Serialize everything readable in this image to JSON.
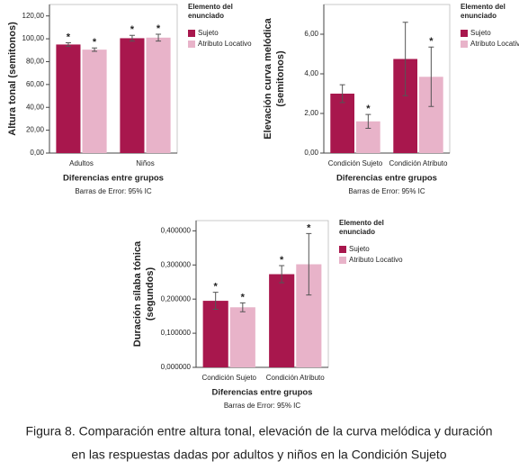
{
  "chart_data": [
    {
      "type": "bar",
      "ylabel": [
        "Altura tonal (semitonos)"
      ],
      "xlabel": "Diferencias entre grupos",
      "note": "Barras de Error: 95% IC",
      "legend_title": [
        "Elemento del",
        "enunciado"
      ],
      "legend": "right",
      "categories": [
        "Adultos",
        "Niños"
      ],
      "series": [
        {
          "name": "Sujeto",
          "color": "#a8174d",
          "values": [
            95,
            100.5
          ],
          "errors": [
            1.5,
            2.5
          ],
          "annotations": [
            "*",
            "*"
          ]
        },
        {
          "name": "Atributo Locativo",
          "color": "#e8b3c9",
          "values": [
            90.5,
            101
          ],
          "errors": [
            1.5,
            3
          ],
          "annotations": [
            "*",
            "*"
          ]
        }
      ],
      "ylim": [
        0,
        130
      ],
      "yticks": [
        {
          "value": 0,
          "label": "0,00"
        },
        {
          "value": 20,
          "label": "20,00"
        },
        {
          "value": 40,
          "label": "40,00"
        },
        {
          "value": 60,
          "label": "60,00"
        },
        {
          "value": 80,
          "label": "80,00"
        },
        {
          "value": 100,
          "label": "100,00"
        },
        {
          "value": 120,
          "label": "120,00"
        }
      ]
    },
    {
      "type": "bar",
      "ylabel": [
        "Elevación curva melódica",
        "(semitonos)"
      ],
      "xlabel": "Diferencias entre grupos",
      "note": "Barras de Error: 95% IC",
      "legend_title": [
        "Elemento del",
        "enunciado"
      ],
      "legend": "right",
      "categories": [
        "Condición Sujeto",
        "Condición Atributo"
      ],
      "series": [
        {
          "name": "Sujeto",
          "color": "#a8174d",
          "values": [
            3.0,
            4.75
          ],
          "errors": [
            0.45,
            1.85
          ],
          "annotations": [
            null,
            null
          ]
        },
        {
          "name": "Atributo Locativo",
          "color": "#e8b3c9",
          "values": [
            1.6,
            3.85
          ],
          "errors": [
            0.35,
            1.5
          ],
          "annotations": [
            "*",
            "*"
          ]
        }
      ],
      "ylim": [
        0,
        7.5
      ],
      "yticks": [
        {
          "value": 0,
          "label": "0,00"
        },
        {
          "value": 2,
          "label": "2,00"
        },
        {
          "value": 4,
          "label": "4,00"
        },
        {
          "value": 6,
          "label": "6,00"
        }
      ]
    },
    {
      "type": "bar",
      "ylabel": [
        "Duración sílaba tónica",
        "(segundos)"
      ],
      "xlabel": "Diferencias entre grupos",
      "note": "Barras de Error: 95% IC",
      "legend_title": [
        "Elemento del",
        "enunciado"
      ],
      "legend": "right",
      "categories": [
        "Condición Sujeto",
        "Condición Atributo"
      ],
      "series": [
        {
          "name": "Sujeto",
          "color": "#a8174d",
          "values": [
            0.195,
            0.273
          ],
          "errors": [
            0.025,
            0.025
          ],
          "annotations": [
            "*",
            "*"
          ]
        },
        {
          "name": "Atributo Locativo",
          "color": "#e8b3c9",
          "values": [
            0.176,
            0.302
          ],
          "errors": [
            0.013,
            0.09
          ],
          "annotations": [
            "*",
            "*"
          ]
        }
      ],
      "ylim": [
        0,
        0.43
      ],
      "yticks": [
        {
          "value": 0,
          "label": "0,000000"
        },
        {
          "value": 0.1,
          "label": "0,100000"
        },
        {
          "value": 0.2,
          "label": "0,200000"
        },
        {
          "value": 0.3,
          "label": "0,300000"
        },
        {
          "value": 0.4,
          "label": "0,400000"
        }
      ]
    }
  ],
  "caption": [
    "Figura 8. Comparación entre altura tonal, elevación de la curva melódica y duración",
    "en las respuestas dadas por adultos y niños en la Condición Sujeto"
  ]
}
